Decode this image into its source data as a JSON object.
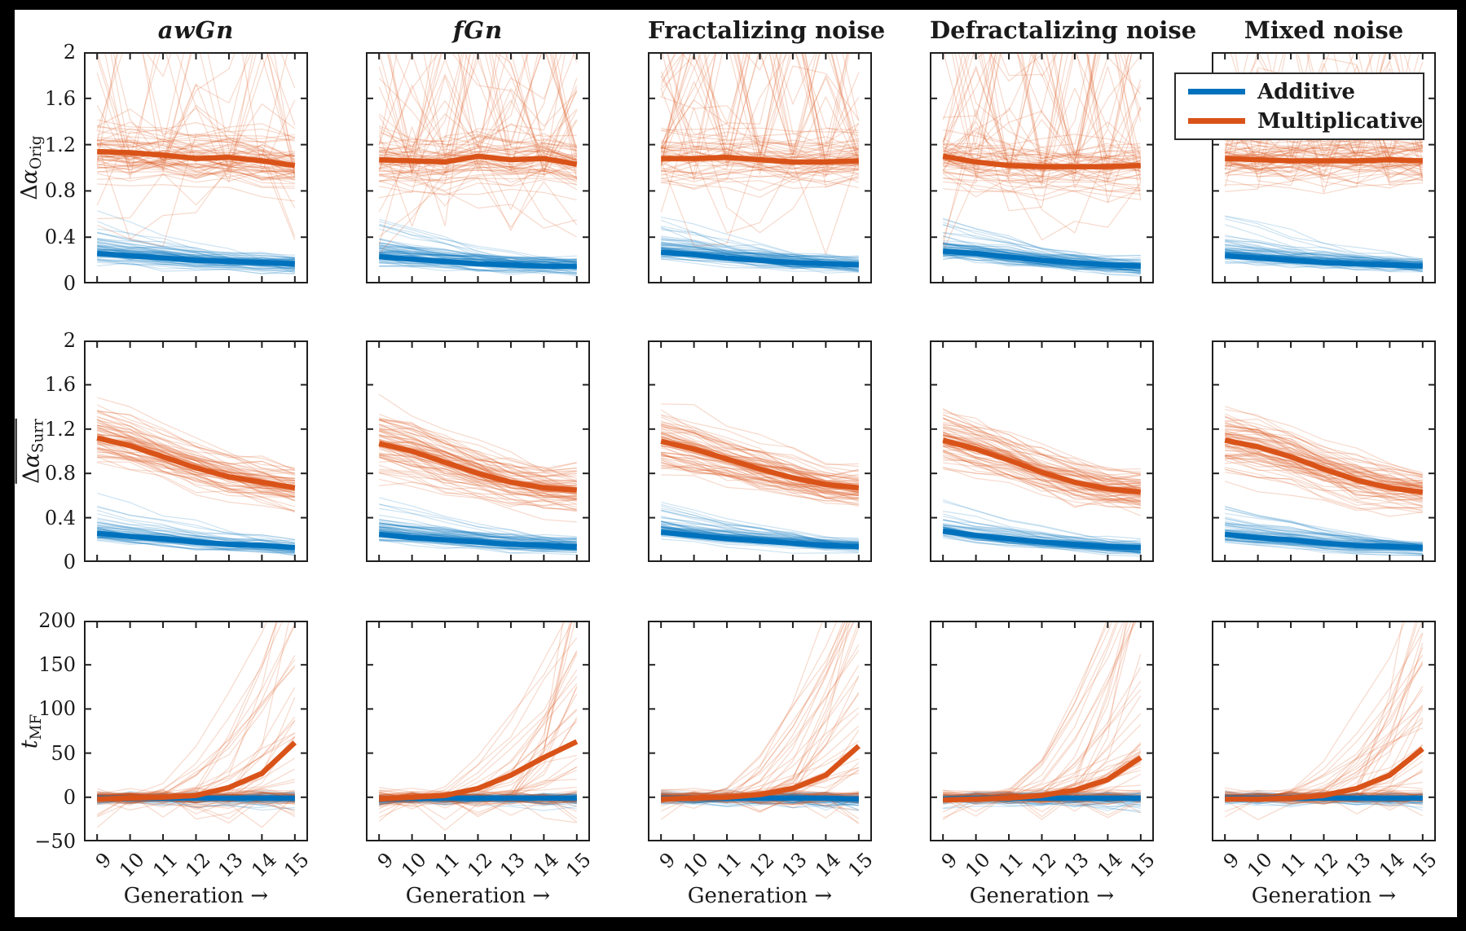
{
  "figure": {
    "description": "3x5 grid of line panels comparing Additive vs Multiplicative noise cascades across five noise types over generations 9-15"
  },
  "colors": {
    "additive": "#0072BD",
    "multiplicative": "#D95319",
    "axis": "#1f1f1f",
    "frame": "#000000",
    "background": "#ffffff"
  },
  "legend": {
    "position": "top-right",
    "items": [
      {
        "label": "Additive",
        "color": "#0072BD"
      },
      {
        "label": "Multiplicative",
        "color": "#D95319"
      }
    ]
  },
  "chart_data": {
    "type": "line",
    "x": [
      9,
      10,
      11,
      12,
      13,
      14,
      15
    ],
    "xticks": [
      "9",
      "10",
      "11",
      "12",
      "13",
      "14",
      "15"
    ],
    "xlabel": "Generation →",
    "xlim": [
      8.6,
      15.4
    ],
    "series_names": [
      "Additive",
      "Multiplicative"
    ],
    "columns": [
      {
        "title": "awGn",
        "math_italic": true
      },
      {
        "title": "fGn",
        "math_italic": true
      },
      {
        "title": "Fractalizing noise",
        "math_italic": false
      },
      {
        "title": "Defractalizing noise",
        "math_italic": false
      },
      {
        "title": "Mixed noise",
        "math_italic": false
      }
    ],
    "rows": [
      {
        "ylabel": "Δα_Orig",
        "ylabel_main": "Δα",
        "ylabel_sub": "Orig",
        "ylabel_overline": false,
        "ylabel_italic_main": false,
        "ylim": [
          0,
          2
        ],
        "yticks": [
          "0",
          "0.4",
          "0.8",
          "1.2",
          "1.6",
          "2"
        ],
        "ytick_values": [
          0,
          0.4,
          0.8,
          1.2,
          1.6,
          2
        ],
        "panels": [
          {
            "column": "awGn",
            "additive_mean": [
              0.26,
              0.24,
              0.22,
              0.2,
              0.19,
              0.18,
              0.17
            ],
            "multiplicative_mean": [
              1.14,
              1.13,
              1.11,
              1.08,
              1.09,
              1.06,
              1.02
            ]
          },
          {
            "column": "fGn",
            "additive_mean": [
              0.23,
              0.21,
              0.19,
              0.17,
              0.16,
              0.15,
              0.15
            ],
            "multiplicative_mean": [
              1.07,
              1.06,
              1.05,
              1.1,
              1.07,
              1.08,
              1.03
            ]
          },
          {
            "column": "Fractalizing noise",
            "additive_mean": [
              0.27,
              0.25,
              0.22,
              0.2,
              0.18,
              0.17,
              0.16
            ],
            "multiplicative_mean": [
              1.08,
              1.08,
              1.09,
              1.07,
              1.05,
              1.05,
              1.06
            ]
          },
          {
            "column": "Defractalizing noise",
            "additive_mean": [
              0.28,
              0.26,
              0.23,
              0.2,
              0.18,
              0.16,
              0.15
            ],
            "multiplicative_mean": [
              1.1,
              1.05,
              1.02,
              1.01,
              1.01,
              1.01,
              1.02
            ]
          },
          {
            "column": "Mixed noise",
            "additive_mean": [
              0.24,
              0.22,
              0.2,
              0.18,
              0.17,
              0.16,
              0.15
            ],
            "multiplicative_mean": [
              1.08,
              1.07,
              1.06,
              1.06,
              1.06,
              1.07,
              1.06
            ]
          }
        ]
      },
      {
        "ylabel": "Δα_Surr (overlined mean)",
        "ylabel_main": "Δα",
        "ylabel_sub": "Surr",
        "ylabel_overline": true,
        "ylabel_italic_main": false,
        "ylim": [
          0,
          2
        ],
        "yticks": [
          "0",
          "0.4",
          "0.8",
          "1.2",
          "1.6",
          "2"
        ],
        "ytick_values": [
          0,
          0.4,
          0.8,
          1.2,
          1.6,
          2
        ],
        "panels": [
          {
            "column": "awGn",
            "additive_mean": [
              0.26,
              0.23,
              0.21,
              0.18,
              0.16,
              0.15,
              0.13
            ],
            "multiplicative_mean": [
              1.12,
              1.05,
              0.95,
              0.85,
              0.77,
              0.72,
              0.67
            ]
          },
          {
            "column": "fGn",
            "additive_mean": [
              0.25,
              0.22,
              0.2,
              0.18,
              0.16,
              0.15,
              0.14
            ],
            "multiplicative_mean": [
              1.07,
              1.0,
              0.9,
              0.8,
              0.72,
              0.67,
              0.65
            ]
          },
          {
            "column": "Fractalizing noise",
            "additive_mean": [
              0.27,
              0.24,
              0.21,
              0.19,
              0.17,
              0.15,
              0.14
            ],
            "multiplicative_mean": [
              1.09,
              1.02,
              0.93,
              0.84,
              0.76,
              0.7,
              0.67
            ]
          },
          {
            "column": "Defractalizing noise",
            "additive_mean": [
              0.28,
              0.24,
              0.21,
              0.18,
              0.16,
              0.14,
              0.13
            ],
            "multiplicative_mean": [
              1.1,
              1.02,
              0.92,
              0.81,
              0.72,
              0.66,
              0.63
            ]
          },
          {
            "column": "Mixed noise",
            "additive_mean": [
              0.25,
              0.22,
              0.2,
              0.17,
              0.15,
              0.14,
              0.13
            ],
            "multiplicative_mean": [
              1.1,
              1.04,
              0.95,
              0.84,
              0.74,
              0.67,
              0.63
            ]
          }
        ]
      },
      {
        "ylabel": "t_MF",
        "ylabel_main": "t",
        "ylabel_sub": "MF",
        "ylabel_overline": false,
        "ylabel_italic_main": true,
        "ylim": [
          -50,
          200
        ],
        "yticks": [
          "−50",
          "0",
          "50",
          "100",
          "150",
          "200"
        ],
        "ytick_values": [
          -50,
          0,
          50,
          100,
          150,
          200
        ],
        "panels": [
          {
            "column": "awGn",
            "additive_mean": [
              -1,
              -1,
              -1,
              -1,
              -1,
              -1,
              -1
            ],
            "multiplicative_mean": [
              -2,
              -1,
              0,
              2,
              11,
              27,
              62
            ]
          },
          {
            "column": "fGn",
            "additive_mean": [
              -2,
              -1,
              -1,
              -1,
              -1,
              -1,
              -1
            ],
            "multiplicative_mean": [
              -2,
              0,
              2,
              10,
              25,
              45,
              63
            ]
          },
          {
            "column": "Fractalizing noise",
            "additive_mean": [
              -1,
              -1,
              -1,
              -1,
              -1,
              -1,
              -2
            ],
            "multiplicative_mean": [
              -2,
              -1,
              0,
              3,
              10,
              25,
              58
            ]
          },
          {
            "column": "Defractalizing noise",
            "additive_mean": [
              -2,
              -1,
              -1,
              -1,
              -1,
              -1,
              -1
            ],
            "multiplicative_mean": [
              -3,
              -2,
              -1,
              2,
              8,
              20,
              45
            ]
          },
          {
            "column": "Mixed noise",
            "additive_mean": [
              -1,
              -1,
              -1,
              -1,
              -1,
              -1,
              -1
            ],
            "multiplicative_mean": [
              -2,
              -2,
              -1,
              2,
              10,
              25,
              55
            ]
          }
        ]
      }
    ],
    "ensemble": {
      "lines_per_series_approx": 70,
      "seed": 42,
      "description": "Each panel shows ~70 faint individual-realization lines per condition behind a thick ensemble-mean line."
    }
  }
}
